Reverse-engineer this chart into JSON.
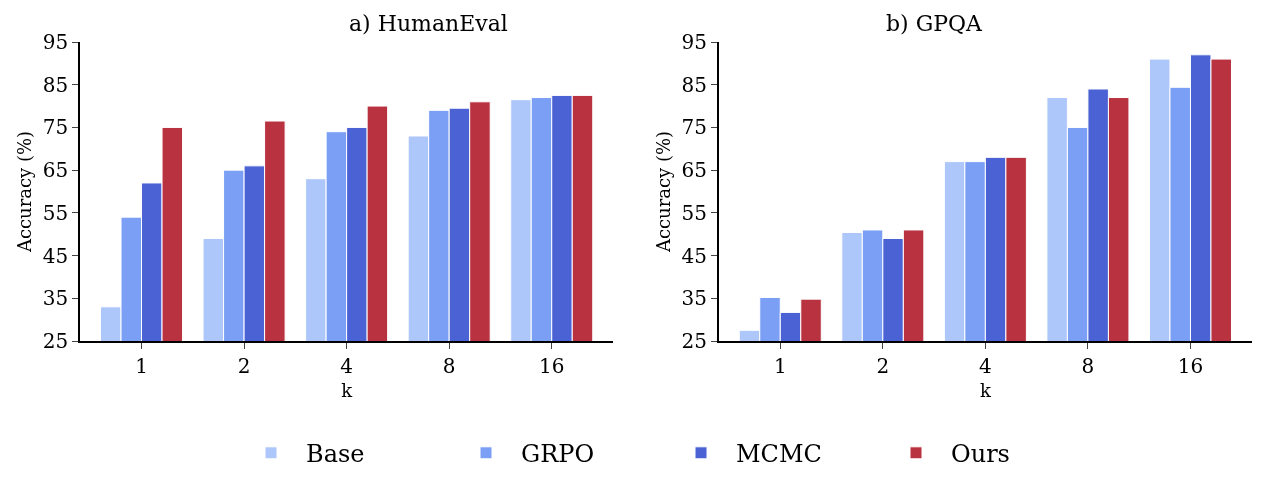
{
  "chart_data": [
    {
      "type": "bar",
      "title": "a) HumanEval",
      "xlabel": "k",
      "ylabel": "Accuracy (%)",
      "categories": [
        "1",
        "2",
        "4",
        "8",
        "16"
      ],
      "ylim": [
        25,
        95
      ],
      "yticks": [
        25,
        35,
        45,
        55,
        65,
        75,
        85,
        95
      ],
      "legend": "bottom",
      "series": [
        {
          "name": "Base",
          "color": "#aec7fa",
          "values": [
            33,
            49,
            63,
            73,
            81.5
          ]
        },
        {
          "name": "GRPO",
          "color": "#7b9ff5",
          "values": [
            54,
            65,
            74,
            79,
            82
          ]
        },
        {
          "name": "MCMC",
          "color": "#4a62d4",
          "values": [
            62,
            66,
            75,
            79.5,
            82.5
          ]
        },
        {
          "name": "Ours",
          "color": "#b93240",
          "values": [
            75,
            76.5,
            80,
            81,
            82.5
          ]
        }
      ]
    },
    {
      "type": "bar",
      "title": "b) GPQA",
      "xlabel": "k",
      "ylabel": "Accuracy (%)",
      "categories": [
        "1",
        "2",
        "4",
        "8",
        "16"
      ],
      "ylim": [
        25,
        95
      ],
      "yticks": [
        25,
        35,
        45,
        55,
        65,
        75,
        85,
        95
      ],
      "legend": "bottom",
      "series": [
        {
          "name": "Base",
          "color": "#aec7fa",
          "values": [
            27.5,
            50.4,
            67,
            82,
            91
          ]
        },
        {
          "name": "GRPO",
          "color": "#7b9ff5",
          "values": [
            35.2,
            51,
            67,
            75,
            84.4
          ]
        },
        {
          "name": "MCMC",
          "color": "#4a62d4",
          "values": [
            31.7,
            49,
            68,
            84,
            92
          ]
        },
        {
          "name": "Ours",
          "color": "#b93240",
          "values": [
            34.8,
            51,
            68,
            82,
            91
          ]
        }
      ]
    }
  ]
}
